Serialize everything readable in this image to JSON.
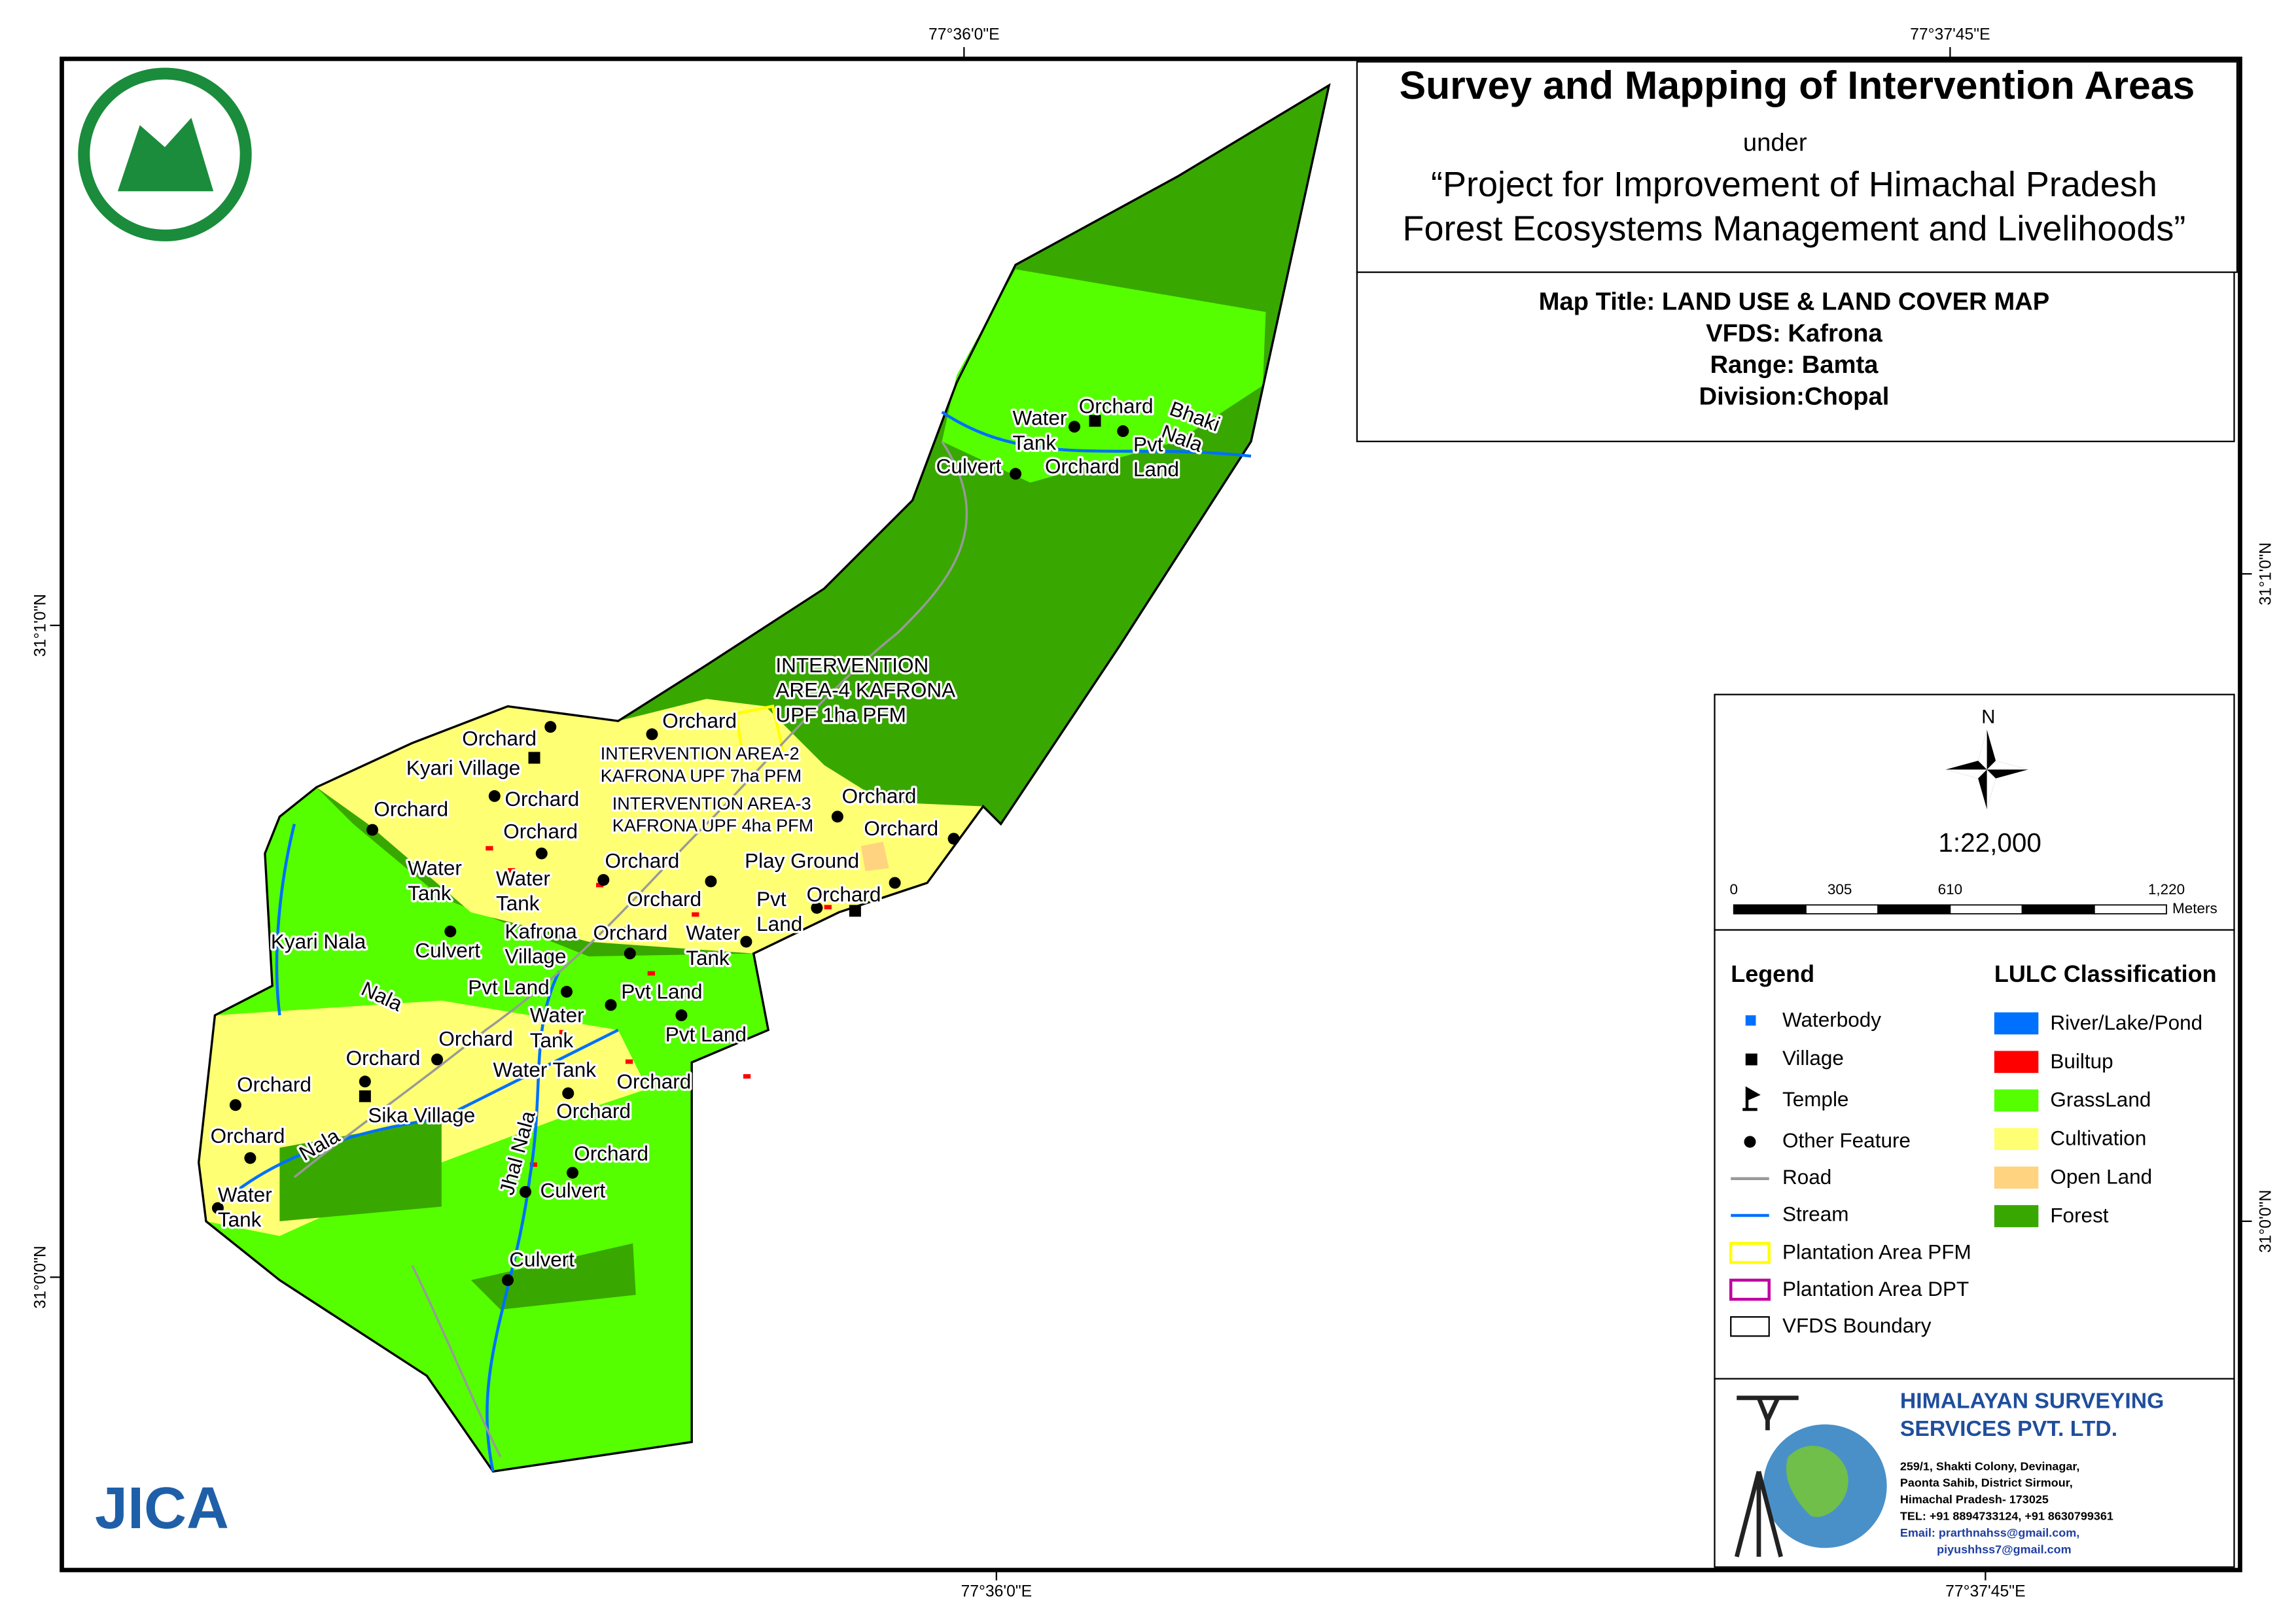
{
  "header": {
    "title": "Survey and Mapping of Intervention Areas",
    "under": "under",
    "project_lines": [
      "“Project for Improvement of Himachal Pradesh",
      "Forest Ecosystems Management and Livelihoods”"
    ]
  },
  "map_info": [
    "Map Title: LAND USE & LAND COVER MAP",
    "VFDS: Kafrona",
    "Range: Bamta",
    "Division:Chopal"
  ],
  "coordinates": {
    "top": [
      "77°36'0\"E",
      "77°37'45\"E"
    ],
    "bottom": [
      "77°36'0\"E",
      "77°37'45\"E"
    ],
    "left": [
      "31°1'0\"N",
      "31°0'0\"N"
    ],
    "right": [
      "31°1'0\"N",
      "31°0'0\"N"
    ]
  },
  "north": "N",
  "scale": {
    "ratio": "1:22,000",
    "labels": [
      "0",
      "305",
      "610",
      "1,220"
    ],
    "unit": "Meters"
  },
  "legend": {
    "title": "Legend",
    "items": [
      "Waterbody",
      "Village",
      "Temple",
      "Other Feature",
      "Road",
      "Stream",
      "Plantation Area PFM",
      "Plantation Area DPT",
      "VFDS Boundary"
    ]
  },
  "lulc": {
    "title": "LULC Classification",
    "classes": [
      {
        "name": "River/Lake/Pond",
        "color": "#0070ff"
      },
      {
        "name": "Builtup",
        "color": "#ff0000"
      },
      {
        "name": "GrassLand",
        "color": "#55ff00"
      },
      {
        "name": "Cultivation",
        "color": "#ffff73"
      },
      {
        "name": "Open Land",
        "color": "#ffd37f"
      },
      {
        "name": "Forest",
        "color": "#38a800"
      }
    ]
  },
  "company": {
    "name_lines": [
      "HIMALAYAN SURVEYING",
      "SERVICES PVT. LTD."
    ],
    "address_lines": [
      "259/1, Shakti Colony, Devinagar,",
      "Paonta Sahib, District Sirmour,",
      "Himachal Pradesh- 173025",
      "TEL: +91 8894733124, +91 8630799361",
      "Email: prarthnahss@gmail.com,",
      "piyushhss7@gmail.com"
    ]
  },
  "logo": "JICA",
  "map": {
    "labels": [
      [
        "Water",
        "Tank"
      ],
      [
        "Orchard"
      ],
      [
        "Bhaki",
        "Nala"
      ],
      [
        "Pvt",
        "Land"
      ],
      [
        "Culvert"
      ],
      [
        "Orchard"
      ],
      [
        "INTERVENTION",
        "AREA-4 KAFRONA",
        "UPF 1ha PFM"
      ],
      [
        "Orchard"
      ],
      [
        "Orchard"
      ],
      [
        "INTERVENTION AREA-2",
        "KAFRONA UPF 7ha PFM"
      ],
      [
        "Kyari Village"
      ],
      [
        "Orchard"
      ],
      [
        "Orchard"
      ],
      [
        "INTERVENTION AREA-3",
        "KAFRONA UPF 4ha PFM"
      ],
      [
        "Orchard"
      ],
      [
        "Orchard"
      ],
      [
        "Orchard"
      ],
      [
        "Orchard"
      ],
      [
        "Play Ground"
      ],
      [
        "Water",
        "Tank"
      ],
      [
        "Water",
        "Tank"
      ],
      [
        "Orchard"
      ],
      [
        "Orchard"
      ],
      [
        "Pvt",
        "Land"
      ],
      [
        "Kafrona",
        "Village"
      ],
      [
        "Orchard"
      ],
      [
        "Water",
        "Tank"
      ],
      [
        "Culvert"
      ],
      [
        "Kyari Nala"
      ],
      [
        "Nala"
      ],
      [
        "Pvt Land"
      ],
      [
        "Pvt Land"
      ],
      [
        "Water",
        "Tank"
      ],
      [
        "Orchard"
      ],
      [
        "Pvt Land"
      ],
      [
        "Orchard"
      ],
      [
        "Water Tank"
      ],
      [
        "Orchard"
      ],
      [
        "Orchard"
      ],
      [
        "Orchard"
      ],
      [
        "Sika Village"
      ],
      [
        "Orchard"
      ],
      [
        "Nala"
      ],
      [
        "Orchard"
      ],
      [
        "Jhal Nala"
      ],
      [
        "Water",
        "Tank"
      ],
      [
        "Culvert"
      ],
      [
        "Culvert"
      ]
    ]
  }
}
